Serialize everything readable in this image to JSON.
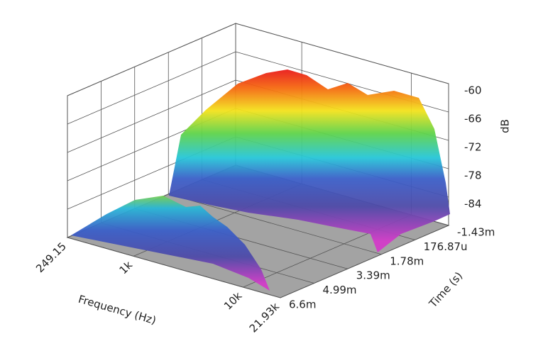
{
  "chart_data": {
    "type": "waterfall3d",
    "xlabel": "Frequency (Hz)",
    "ylabel": "Time (s)",
    "zlabel": "dB",
    "xlim": [
      249.15,
      21930
    ],
    "xscale": "log",
    "xticks": [
      249.15,
      {
        "value": 1000,
        "label": "1k"
      },
      {
        "value": 10000,
        "label": "10k"
      },
      {
        "value": 21930,
        "label": "21.93k"
      }
    ],
    "ylim": [
      -0.00143,
      0.0066
    ],
    "yticks": [
      {
        "value": -0.00143,
        "label": "-1.43m"
      },
      {
        "value": 0.00017687,
        "label": "176.87u"
      },
      {
        "value": 0.00178,
        "label": "1.78m"
      },
      {
        "value": 0.00339,
        "label": "3.39m"
      },
      {
        "value": 0.00499,
        "label": "4.99m"
      },
      {
        "value": 0.0066,
        "label": "6.6m"
      }
    ],
    "zlim": [
      -90,
      -60
    ],
    "zticks": [
      -60,
      -66,
      -72,
      -78,
      -84
    ],
    "grid": true
  }
}
